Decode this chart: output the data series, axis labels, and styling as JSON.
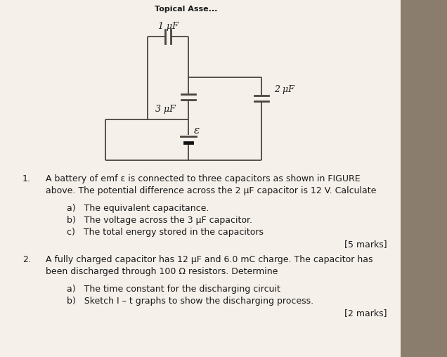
{
  "bg_color": "#c8bfb2",
  "paper_color": "#f0ece4",
  "line_color": "#4a4540",
  "text_color": "#1a1a1a",
  "title": "Topical Asse...",
  "cap1_label": "1 μF",
  "cap2_label": "2 μF",
  "cap3_label": "3 μF",
  "emf_label": "ε",
  "q1_num": "1.",
  "q1_line1": "A battery of emf ε is connected to three capacitors as shown in FIGURE",
  "q1_line2": "above. The potential difference across the 2 μF capacitor is 12 V. Calculate",
  "q1a": "a)   The equivalent capacitance.",
  "q1b": "b)   The voltage across the 3 μF capacitor.",
  "q1c": "c)   The total energy stored in the capacitors",
  "marks1": "[5 marks]",
  "q2_num": "2.",
  "q2_line1": "A fully charged capacitor has 12 μF and 6.0 mC charge. The capacitor has",
  "q2_line2": "been discharged through 100 Ω resistors. Determine",
  "q2a": "a)   The time constant for the discharging circuit",
  "q2b": "b)   Sketch I – t graphs to show the discharging process.",
  "marks2": "[2 marks]"
}
